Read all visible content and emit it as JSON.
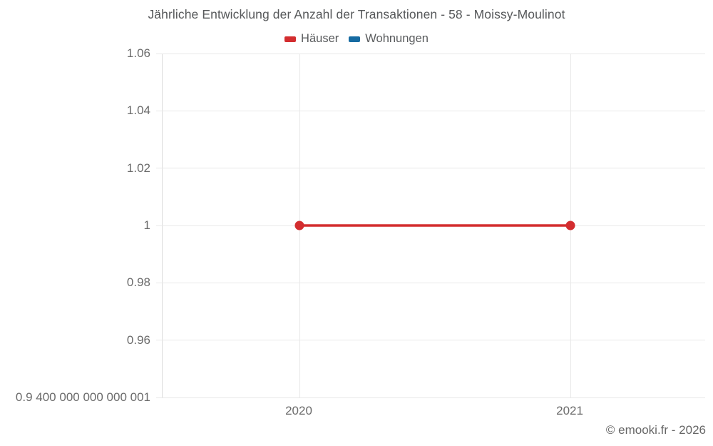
{
  "chart_data": {
    "type": "line",
    "title": "Jährliche Entwicklung der Anzahl der Transaktionen - 58 - Moissy-Moulinot",
    "categories": [
      "2020",
      "2021"
    ],
    "series": [
      {
        "name": "Häuser",
        "color": "#d32d2f",
        "values": [
          1,
          1
        ]
      },
      {
        "name": "Wohnungen",
        "color": "#166ba2",
        "values": []
      }
    ],
    "ylim": [
      0.9400000000000001,
      1.06
    ],
    "yticks": [
      {
        "value": 1.06,
        "label": "1.06"
      },
      {
        "value": 1.04,
        "label": "1.04"
      },
      {
        "value": 1.02,
        "label": "1.02"
      },
      {
        "value": 1.0,
        "label": "1"
      },
      {
        "value": 0.98,
        "label": "0.98"
      },
      {
        "value": 0.96,
        "label": "0.96"
      },
      {
        "value": 0.9400000000000001,
        "label": "0.9 400 000 000 000 001"
      }
    ],
    "xticks": [
      {
        "label": "2020",
        "fraction": 0.2523
      },
      {
        "label": "2021",
        "fraction": 0.7517
      }
    ],
    "grid": true,
    "legend_position": "top",
    "marker_radius": 6.5,
    "line_width": 3.5,
    "attribution": "© emooki.fr - 2026"
  }
}
